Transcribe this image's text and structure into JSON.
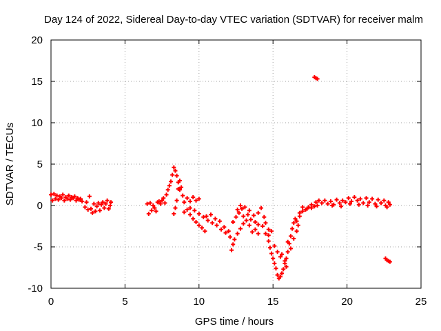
{
  "chart_data": {
    "type": "scatter",
    "title": "Day 124 of 2022, Sidereal Day-to-day VTEC variation (SDTVAR) for receiver malm",
    "xlabel": "GPS time / hours",
    "ylabel": "SDTVAR / TECUs",
    "xlim": [
      0,
      25
    ],
    "ylim": [
      -10,
      20
    ],
    "xticks": [
      0,
      5,
      10,
      15,
      20,
      25
    ],
    "yticks": [
      -10,
      -5,
      0,
      5,
      10,
      15,
      20
    ],
    "xtick_labels": [
      "0",
      "5",
      "10",
      "15",
      "20",
      "25"
    ],
    "ytick_labels": [
      "-10",
      "-5",
      "0",
      "5",
      "10",
      "15",
      "20"
    ],
    "grid": true,
    "marker": "+",
    "series_color": "#ff0000",
    "series": [
      {
        "name": "SDTVAR",
        "points": [
          [
            0.0,
            1.3
          ],
          [
            0.1,
            0.6
          ],
          [
            0.2,
            1.4
          ],
          [
            0.3,
            0.8
          ],
          [
            0.4,
            1.2
          ],
          [
            0.5,
            0.7
          ],
          [
            0.6,
            1.1
          ],
          [
            0.7,
            0.9
          ],
          [
            0.8,
            1.3
          ],
          [
            0.9,
            0.6
          ],
          [
            1.0,
            1.0
          ],
          [
            1.1,
            0.8
          ],
          [
            1.2,
            1.2
          ],
          [
            1.3,
            0.7
          ],
          [
            1.4,
            1.0
          ],
          [
            1.5,
            0.9
          ],
          [
            1.6,
            1.1
          ],
          [
            1.7,
            0.6
          ],
          [
            1.8,
            0.9
          ],
          [
            1.9,
            0.7
          ],
          [
            2.0,
            0.8
          ],
          [
            2.1,
            0.5
          ],
          [
            2.3,
            -0.2
          ],
          [
            2.4,
            0.4
          ],
          [
            2.5,
            -0.5
          ],
          [
            2.6,
            1.1
          ],
          [
            2.7,
            -0.4
          ],
          [
            2.8,
            -0.9
          ],
          [
            2.9,
            0.2
          ],
          [
            3.0,
            -0.7
          ],
          [
            3.1,
            -0.1
          ],
          [
            3.2,
            0.3
          ],
          [
            3.3,
            -0.6
          ],
          [
            3.4,
            0.1
          ],
          [
            3.5,
            0.4
          ],
          [
            3.6,
            -0.3
          ],
          [
            3.7,
            0.2
          ],
          [
            3.8,
            0.6
          ],
          [
            3.9,
            -0.4
          ],
          [
            4.0,
            0.0
          ],
          [
            4.05,
            0.4
          ],
          [
            6.5,
            0.2
          ],
          [
            6.6,
            -1.0
          ],
          [
            6.7,
            0.3
          ],
          [
            6.8,
            -0.6
          ],
          [
            6.9,
            0.0
          ],
          [
            7.0,
            -0.3
          ],
          [
            7.1,
            -0.7
          ],
          [
            7.2,
            0.4
          ],
          [
            7.3,
            0.5
          ],
          [
            7.4,
            0.2
          ],
          [
            7.5,
            0.6
          ],
          [
            7.6,
            0.9
          ],
          [
            7.7,
            0.3
          ],
          [
            7.8,
            1.3
          ],
          [
            7.9,
            1.9
          ],
          [
            8.0,
            2.4
          ],
          [
            8.1,
            2.9
          ],
          [
            8.2,
            3.7
          ],
          [
            8.3,
            4.6
          ],
          [
            8.4,
            4.2
          ],
          [
            8.5,
            3.6
          ],
          [
            8.6,
            2.8
          ],
          [
            8.7,
            1.9
          ],
          [
            8.3,
            -1.0
          ],
          [
            8.4,
            -0.3
          ],
          [
            8.5,
            0.6
          ],
          [
            8.6,
            2.0
          ],
          [
            8.7,
            3.0
          ],
          [
            8.8,
            2.2
          ],
          [
            8.9,
            1.2
          ],
          [
            9.0,
            0.4
          ],
          [
            9.2,
            0.9
          ],
          [
            9.4,
            0.5
          ],
          [
            9.6,
            1.0
          ],
          [
            9.8,
            0.6
          ],
          [
            10.0,
            0.8
          ],
          [
            9.0,
            -0.8
          ],
          [
            9.2,
            -0.5
          ],
          [
            9.4,
            -1.1
          ],
          [
            9.6,
            -1.6
          ],
          [
            9.8,
            -2.0
          ],
          [
            10.0,
            -2.4
          ],
          [
            10.2,
            -2.7
          ],
          [
            10.4,
            -3.1
          ],
          [
            9.4,
            -0.3
          ],
          [
            9.7,
            -0.6
          ],
          [
            10.0,
            -1.0
          ],
          [
            10.3,
            -1.4
          ],
          [
            10.6,
            -1.8
          ],
          [
            10.9,
            -2.1
          ],
          [
            11.2,
            -2.4
          ],
          [
            11.5,
            -2.9
          ],
          [
            11.8,
            -3.3
          ],
          [
            12.1,
            -3.8
          ],
          [
            10.5,
            -1.3
          ],
          [
            10.8,
            -1.1
          ],
          [
            11.1,
            -1.6
          ],
          [
            11.4,
            -1.9
          ],
          [
            11.7,
            -2.6
          ],
          [
            12.0,
            -3.1
          ],
          [
            12.2,
            -5.4
          ],
          [
            12.3,
            -4.7
          ],
          [
            12.4,
            -4.1
          ],
          [
            12.6,
            -3.4
          ],
          [
            12.8,
            -2.8
          ],
          [
            13.0,
            -2.2
          ],
          [
            13.2,
            -1.8
          ],
          [
            13.4,
            -2.4
          ],
          [
            13.6,
            -3.2
          ],
          [
            13.8,
            -2.9
          ],
          [
            14.0,
            -3.4
          ],
          [
            12.3,
            -2.0
          ],
          [
            12.5,
            -1.4
          ],
          [
            12.7,
            -0.9
          ],
          [
            12.9,
            -0.4
          ],
          [
            13.1,
            -0.2
          ],
          [
            13.3,
            -1.1
          ],
          [
            13.5,
            -1.7
          ],
          [
            13.8,
            -2.0
          ],
          [
            14.0,
            -2.3
          ],
          [
            14.3,
            -2.5
          ],
          [
            14.5,
            -2.1
          ],
          [
            14.7,
            -2.9
          ],
          [
            12.6,
            -0.5
          ],
          [
            12.8,
            0.0
          ],
          [
            13.0,
            -1.3
          ],
          [
            13.4,
            -0.6
          ],
          [
            13.7,
            -1.2
          ],
          [
            14.0,
            -0.9
          ],
          [
            14.2,
            -0.3
          ],
          [
            14.4,
            -1.4
          ],
          [
            14.5,
            -3.4
          ],
          [
            14.7,
            -4.3
          ],
          [
            14.8,
            -5.1
          ],
          [
            14.9,
            -5.8
          ],
          [
            15.0,
            -6.4
          ],
          [
            15.1,
            -7.0
          ],
          [
            15.2,
            -7.6
          ],
          [
            15.3,
            -8.4
          ],
          [
            15.4,
            -8.8
          ],
          [
            15.5,
            -8.6
          ],
          [
            15.6,
            -8.2
          ],
          [
            15.7,
            -7.7
          ],
          [
            15.8,
            -7.0
          ],
          [
            15.9,
            -6.4
          ],
          [
            16.0,
            -5.6
          ],
          [
            16.1,
            -4.6
          ],
          [
            16.2,
            -3.7
          ],
          [
            16.3,
            -2.8
          ],
          [
            16.4,
            -2.1
          ],
          [
            16.5,
            -1.6
          ],
          [
            14.7,
            -3.6
          ],
          [
            14.9,
            -3.1
          ],
          [
            15.1,
            -4.9
          ],
          [
            15.3,
            -5.6
          ],
          [
            15.5,
            -6.2
          ],
          [
            15.6,
            -5.9
          ],
          [
            15.8,
            -6.7
          ],
          [
            15.9,
            -7.4
          ],
          [
            16.0,
            -4.4
          ],
          [
            16.2,
            -5.2
          ],
          [
            16.4,
            -4.0
          ],
          [
            16.6,
            -3.1
          ],
          [
            16.7,
            -2.4
          ],
          [
            16.6,
            -1.9
          ],
          [
            16.8,
            -1.3
          ],
          [
            17.0,
            -0.7
          ],
          [
            17.2,
            -0.5
          ],
          [
            17.4,
            -0.2
          ],
          [
            17.6,
            0.1
          ],
          [
            17.8,
            -0.1
          ],
          [
            18.0,
            0.0
          ],
          [
            16.8,
            -0.9
          ],
          [
            17.0,
            -0.2
          ],
          [
            17.3,
            -0.4
          ],
          [
            17.6,
            -0.3
          ],
          [
            17.9,
            0.4
          ],
          [
            18.1,
            0.6
          ],
          [
            18.3,
            0.3
          ],
          [
            18.5,
            0.6
          ],
          [
            18.7,
            0.2
          ],
          [
            18.9,
            0.5
          ],
          [
            19.1,
            0.1
          ],
          [
            19.3,
            0.7
          ],
          [
            19.5,
            0.3
          ],
          [
            19.7,
            0.6
          ],
          [
            19.9,
            0.4
          ],
          [
            20.1,
            0.9
          ],
          [
            20.3,
            0.5
          ],
          [
            20.5,
            1.0
          ],
          [
            20.7,
            0.6
          ],
          [
            20.9,
            0.8
          ],
          [
            21.1,
            0.3
          ],
          [
            21.3,
            0.9
          ],
          [
            21.5,
            0.4
          ],
          [
            21.7,
            0.8
          ],
          [
            21.9,
            0.2
          ],
          [
            22.1,
            0.7
          ],
          [
            22.3,
            0.3
          ],
          [
            22.5,
            0.6
          ],
          [
            22.7,
            -0.2
          ],
          [
            22.8,
            0.4
          ],
          [
            22.9,
            0.1
          ],
          [
            19.0,
            0.0
          ],
          [
            19.6,
            -0.1
          ],
          [
            20.2,
            0.2
          ],
          [
            20.8,
            0.1
          ],
          [
            21.4,
            0.0
          ],
          [
            22.0,
            -0.1
          ],
          [
            22.6,
            0.0
          ],
          [
            17.8,
            15.5
          ],
          [
            17.9,
            15.4
          ],
          [
            18.0,
            15.3
          ],
          [
            22.6,
            -6.4
          ],
          [
            22.7,
            -6.6
          ],
          [
            22.8,
            -6.7
          ],
          [
            22.9,
            -6.8
          ]
        ]
      }
    ]
  }
}
